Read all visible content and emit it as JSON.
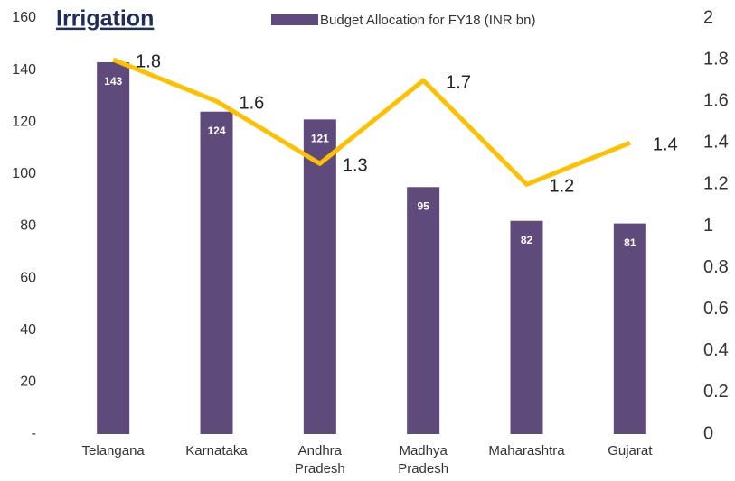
{
  "chart_data": {
    "type": "bar_line",
    "title": "Irrigation",
    "categories": [
      "Telangana",
      "Karnataka",
      "Andhra Pradesh",
      "Madhya Pradesh",
      "Maharashtra",
      "Gujarat"
    ],
    "series": [
      {
        "name": "Budget Allocation for FY18 (INR bn)",
        "color": "#5f4b7b",
        "type": "bar",
        "values": [
          143,
          124,
          121,
          95,
          82,
          81
        ]
      },
      {
        "color": "#ffc000",
        "type": "line",
        "axis": "y2",
        "values": [
          1.8,
          1.6,
          1.3,
          1.7,
          1.2,
          1.4
        ]
      }
    ],
    "ylim": [
      0,
      160
    ],
    "yticks": [
      {
        "value": 0,
        "label": "-"
      },
      20,
      40,
      60,
      80,
      100,
      120,
      140,
      160
    ],
    "y2lim": [
      0,
      2
    ],
    "y2ticks": [
      0,
      0.2,
      0.4,
      0.6,
      0.8,
      1,
      1.2,
      1.4,
      1.6,
      1.8,
      2
    ],
    "legend": "top"
  }
}
